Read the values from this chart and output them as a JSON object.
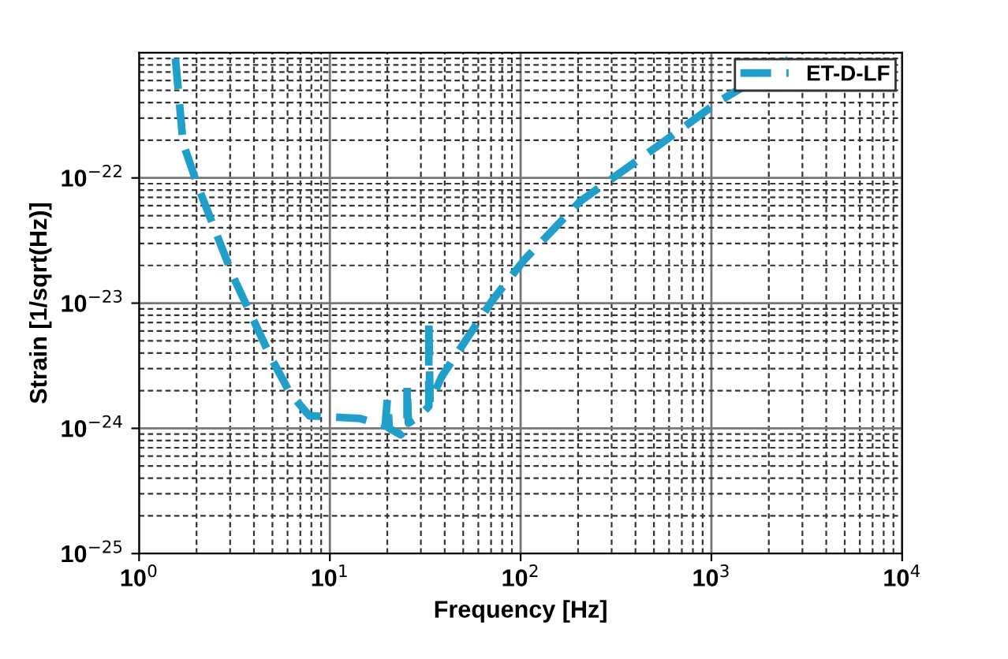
{
  "chart_data": {
    "type": "line",
    "xlabel": "Frequency [Hz]",
    "ylabel": "Strain [1/sqrt(Hz)]",
    "log": "xy",
    "grid": true,
    "legend": "top right",
    "line_style": "dashed",
    "marker": "none",
    "xlim": [
      1,
      10000
    ],
    "ylim": [
      1e-25,
      1e-21
    ],
    "xticks": [
      {
        "value": 1,
        "label": "10$^{0}$"
      },
      {
        "value": 10,
        "label": "10$^{1}$"
      },
      {
        "value": 100,
        "label": "10$^{2}$"
      },
      {
        "value": 1000,
        "label": "10$^{3}$"
      },
      {
        "value": 10000,
        "label": "10$^{4}$"
      }
    ],
    "yticks": [
      {
        "value": 1e-25,
        "label": "10$^{−25}$"
      },
      {
        "value": 1e-24,
        "label": "10$^{−24}$"
      },
      {
        "value": 1e-23,
        "label": "10$^{−23}$"
      },
      {
        "value": 1e-22,
        "label": "10$^{−22}$"
      }
    ],
    "series": [
      {
        "name": "ET-D-LF",
        "color": "#1f9fc9",
        "x": [
          1.55,
          1.7,
          2.0,
          3.1,
          4.9,
          6.2,
          7.8,
          14.4,
          19.5,
          20,
          20.5,
          23.5,
          25.4,
          25.4,
          25.8,
          29.6,
          33,
          33,
          33.5,
          38.6,
          71,
          104,
          205,
          550,
          1100,
          2600
        ],
        "values": [
          9e-22,
          1.9e-22,
          9.2e-23,
          1.65e-23,
          3.7e-24,
          1.9e-24,
          1.26e-24,
          1.2e-24,
          1.04e-24,
          1.7e-24,
          1e-24,
          8.9e-25,
          1e-24,
          2.2e-24,
          1.1e-24,
          1.26e-24,
          1.5e-24,
          7e-24,
          1.6e-24,
          2.6e-24,
          1.05e-23,
          2.2e-23,
          6.5e-23,
          1.9e-22,
          4.1e-22,
          9e-22
        ]
      }
    ]
  }
}
